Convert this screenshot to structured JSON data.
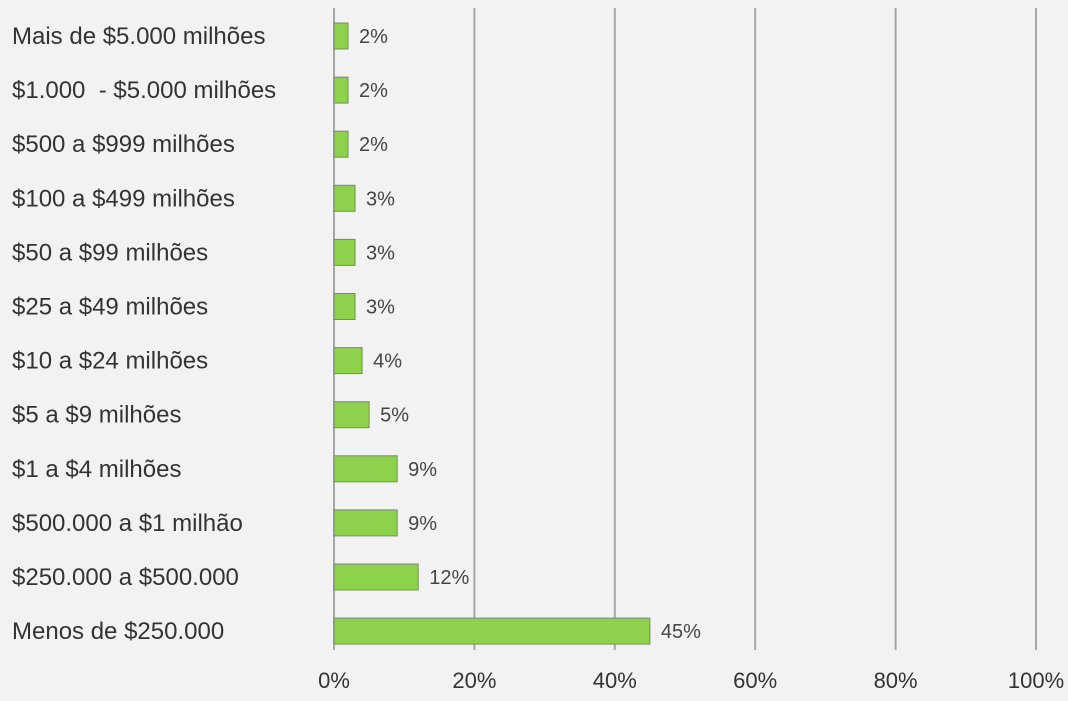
{
  "chart_data": {
    "type": "bar",
    "orientation": "horizontal",
    "title": "",
    "xlabel": "",
    "ylabel": "",
    "categories": [
      "Mais de $5.000 milhões",
      "$1.000  - $5.000 milhões",
      "$500 a $999 milhões",
      "$100 a $499 milhões",
      "$50 a $99 milhões",
      "$25 a $49 milhões",
      "$10 a $24 milhões",
      "$5 a $9 milhões",
      "$1 a $4 milhões",
      "$500.000 a $1 milhão",
      "$250.000 a $500.000",
      "Menos de $250.000"
    ],
    "values": [
      2,
      2,
      2,
      3,
      3,
      3,
      4,
      5,
      9,
      9,
      12,
      45
    ],
    "value_labels": [
      "2%",
      "2%",
      "2%",
      "3%",
      "3%",
      "3%",
      "4%",
      "5%",
      "9%",
      "9%",
      "12%",
      "45%"
    ],
    "xlim": [
      0,
      100
    ],
    "x_ticks": [
      0,
      20,
      40,
      60,
      80,
      100
    ],
    "x_tick_labels": [
      "0%",
      "20%",
      "40%",
      "60%",
      "80%",
      "100%"
    ],
    "grid": "vertical",
    "legend": "none",
    "colors": {
      "bar_fill": "#8ed14c",
      "bar_stroke": "#7a8a6a",
      "grid": "#a6a6a6",
      "background": "#f2f2f2"
    }
  }
}
